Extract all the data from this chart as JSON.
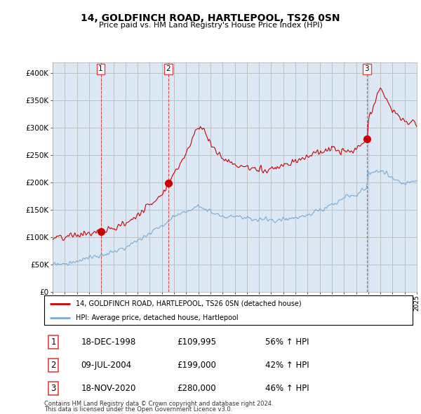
{
  "title": "14, GOLDFINCH ROAD, HARTLEPOOL, TS26 0SN",
  "subtitle": "Price paid vs. HM Land Registry's House Price Index (HPI)",
  "ylim": [
    0,
    420000
  ],
  "yticks": [
    0,
    50000,
    100000,
    150000,
    200000,
    250000,
    300000,
    350000,
    400000
  ],
  "ytick_labels": [
    "£0",
    "£50K",
    "£100K",
    "£150K",
    "£200K",
    "£250K",
    "£300K",
    "£350K",
    "£400K"
  ],
  "xlim": [
    1995,
    2025
  ],
  "sale_dates": [
    1998.96,
    2004.52,
    2020.88
  ],
  "sale_prices": [
    109995,
    199000,
    280000
  ],
  "sale_labels": [
    "1",
    "2",
    "3"
  ],
  "sale_info": [
    {
      "label": "1",
      "date": "18-DEC-1998",
      "price": "£109,995",
      "hpi": "56% ↑ HPI"
    },
    {
      "label": "2",
      "date": "09-JUL-2004",
      "price": "£199,000",
      "hpi": "42% ↑ HPI"
    },
    {
      "label": "3",
      "date": "18-NOV-2020",
      "price": "£280,000",
      "hpi": "46% ↑ HPI"
    }
  ],
  "line1_color": "#cc0000",
  "line2_color": "#7aaad4",
  "fill_color": "#dce9f5",
  "grid_color": "#bbbbbb",
  "vline_color": "#dd4444",
  "background_color": "#ffffff",
  "chart_bg": "#dce9f5",
  "legend1": "14, GOLDFINCH ROAD, HARTLEPOOL, TS26 0SN (detached house)",
  "legend2": "HPI: Average price, detached house, Hartlepool",
  "footer1": "Contains HM Land Registry data © Crown copyright and database right 2024.",
  "footer2": "This data is licensed under the Open Government Licence v3.0."
}
